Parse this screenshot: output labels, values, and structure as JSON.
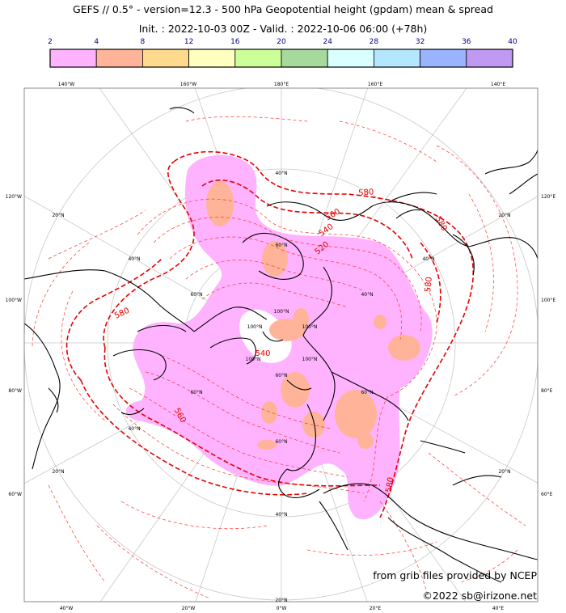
{
  "title_line1": "GEFS // 0.5° - version=12.3 - 500 hPa Geopotential height (gpdam) mean & spread",
  "title_line2": "Init. : 2022-10-03 00Z - Valid. : 2022-10-06 06:00 (+78h)",
  "colorbar": {
    "ticks": [
      "2",
      "4",
      "8",
      "12",
      "16",
      "20",
      "24",
      "28",
      "32",
      "36",
      "40"
    ],
    "colors": [
      "#ffb3ff",
      "#ffb399",
      "#ffd98c",
      "#ffffbf",
      "#ccff99",
      "#a6d99c",
      "#d9ffff",
      "#b3e6ff",
      "#99b3ff",
      "#bf99f2"
    ],
    "tick_color": "#00007f"
  },
  "meridians_top": [
    "140°W",
    "160°W",
    "180°E",
    "160°E",
    "140°E"
  ],
  "meridians_bottom": [
    "40°W",
    "20°W",
    "0°W",
    "20°E",
    "40°E"
  ],
  "meridians_left": [
    "120°W",
    "100°W",
    "80°W",
    "60°W"
  ],
  "meridians_right": [
    "120°E",
    "100°E",
    "80°E",
    "60°E"
  ],
  "latitude_labels": [
    "40°N",
    "20°N",
    "40°N",
    "60°N",
    "60°N",
    "100°N",
    "100°N",
    "100°N",
    "100°N",
    "100°N",
    "60°N",
    "40°N",
    "60°N",
    "40°N",
    "60°N",
    "40°N",
    "20°N",
    "20°N",
    "40°N",
    "20°N",
    "60°N",
    "20°N"
  ],
  "contour_labels": [
    "580",
    "560",
    "540",
    "520",
    "580",
    "560",
    "580",
    "580",
    "580",
    "540"
  ],
  "contour_color": "#e60000",
  "credit_line1": "from grib files provided by NCEP",
  "credit_line2": "©2022 sb@irizone.net"
}
